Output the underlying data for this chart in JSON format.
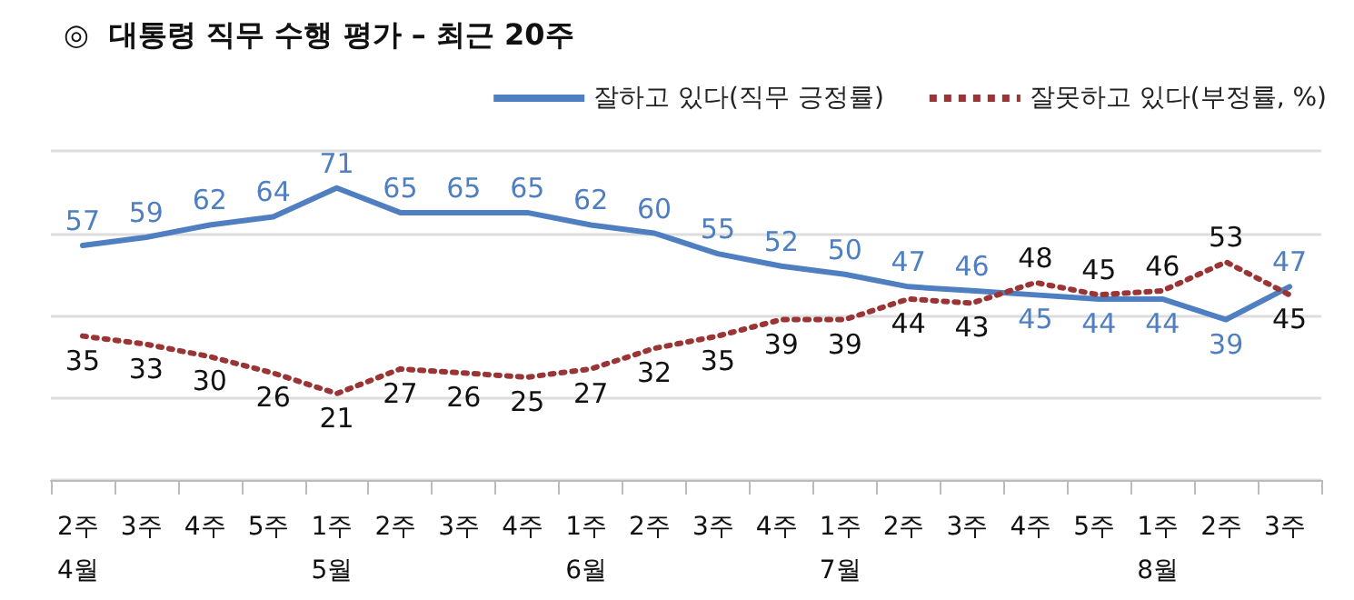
{
  "chart_data": {
    "type": "line",
    "title": "◎  대통령 직무 수행 평가 – 최근 20주",
    "categories": [
      "2주\n4월",
      "3주",
      "4주",
      "5주",
      "1주\n5월",
      "2주",
      "3주",
      "4주",
      "1주\n6월",
      "2주",
      "3주",
      "4주",
      "1주\n7월",
      "2주",
      "3주",
      "4주",
      "5주",
      "1주\n8월",
      "2주",
      "3주"
    ],
    "series": [
      {
        "name": "잘하고 있다(직무 긍정률)",
        "color": "#4f7fc0",
        "line_style": "solid",
        "values": [
          57,
          59,
          62,
          64,
          71,
          65,
          65,
          65,
          62,
          60,
          55,
          52,
          50,
          47,
          46,
          45,
          44,
          44,
          39,
          47
        ]
      },
      {
        "name": "잘못하고 있다(부정률, %)",
        "color": "#9b3535",
        "line_style": "dotted",
        "values": [
          35,
          33,
          30,
          26,
          21,
          27,
          26,
          25,
          27,
          32,
          35,
          39,
          39,
          44,
          43,
          48,
          45,
          46,
          53,
          45
        ]
      }
    ],
    "ylim": [
      0,
      80
    ],
    "yticks": [
      {
        "value": 0,
        "label": null
      },
      {
        "value": 20,
        "label": null
      },
      {
        "value": 40,
        "label": null
      },
      {
        "value": 60,
        "label": null
      },
      {
        "value": 80,
        "label": null
      }
    ],
    "tick_labels": "x",
    "grid": "y",
    "legend": "top right",
    "marker": "none",
    "data_labels": true
  }
}
